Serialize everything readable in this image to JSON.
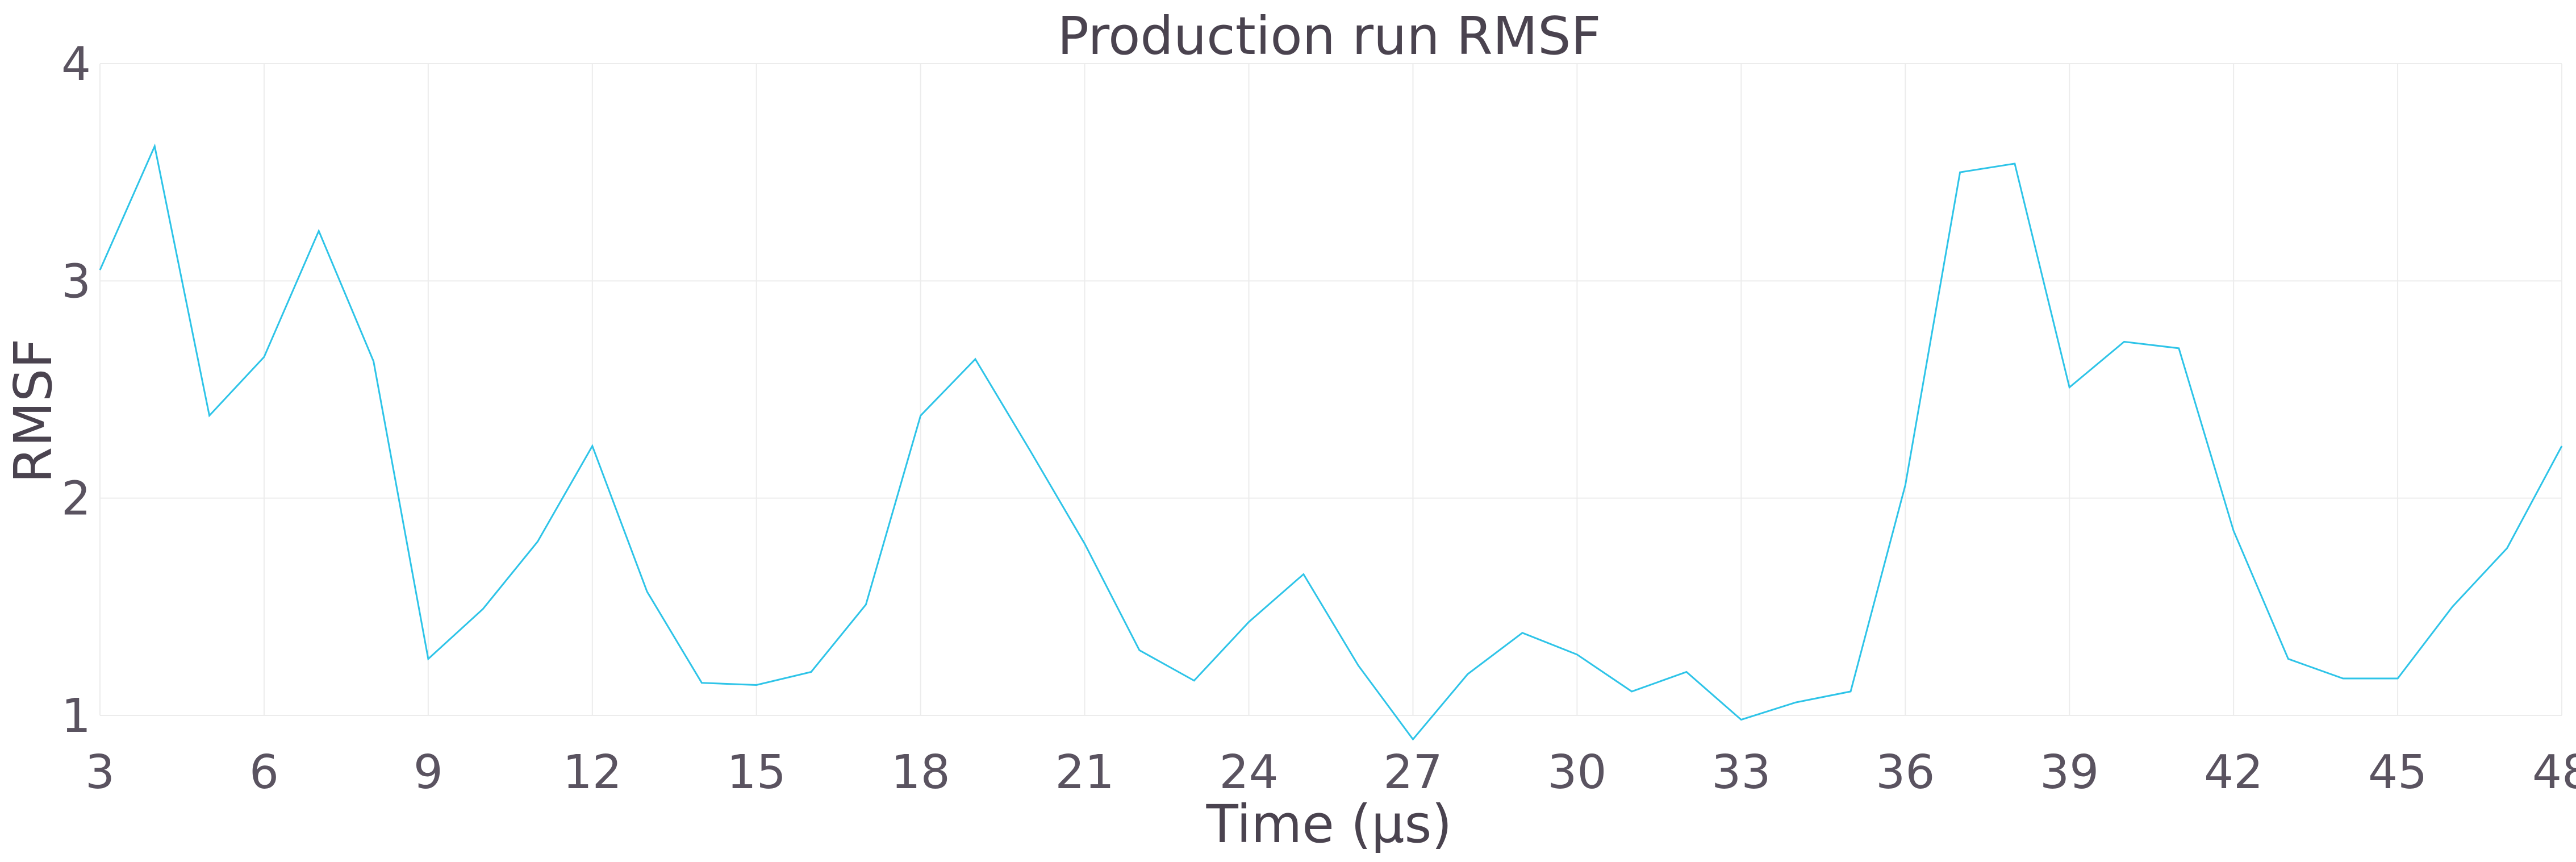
{
  "chart_data": {
    "type": "line",
    "title": "Production run RMSF",
    "xlabel": "Time (µs)",
    "ylabel": "RMSF",
    "xlim": [
      3,
      48
    ],
    "ylim": [
      1,
      4
    ],
    "xticks": [
      3,
      6,
      9,
      12,
      15,
      18,
      21,
      24,
      27,
      30,
      33,
      36,
      39,
      42,
      45,
      48
    ],
    "yticks": [
      1,
      2,
      3,
      4
    ],
    "grid": true,
    "colors": {
      "line": "#2ec4e8",
      "grid": "#ececec",
      "text": "#5a5360"
    },
    "series": [
      {
        "x": [
          3,
          4,
          5,
          6,
          7,
          8,
          9,
          10,
          11,
          12,
          13,
          14,
          15,
          16,
          17,
          18,
          19,
          20,
          21,
          22,
          23,
          24,
          25,
          26,
          27,
          28,
          29,
          30,
          31,
          32,
          33,
          34,
          35,
          36,
          37,
          38,
          39,
          40,
          41,
          42,
          43,
          44,
          45,
          46,
          47,
          48
        ],
        "values": [
          3.05,
          3.62,
          2.38,
          2.65,
          3.23,
          2.63,
          1.26,
          1.49,
          1.8,
          2.24,
          1.57,
          1.15,
          1.14,
          1.2,
          1.51,
          2.38,
          2.64,
          2.22,
          1.79,
          1.3,
          1.16,
          1.43,
          1.65,
          1.23,
          0.89,
          1.19,
          1.38,
          1.28,
          1.11,
          1.2,
          0.98,
          1.06,
          1.11,
          2.06,
          3.5,
          3.54,
          2.51,
          2.72,
          2.69,
          1.85,
          1.26,
          1.17,
          1.17,
          1.5,
          1.77,
          2.24
        ]
      }
    ]
  }
}
